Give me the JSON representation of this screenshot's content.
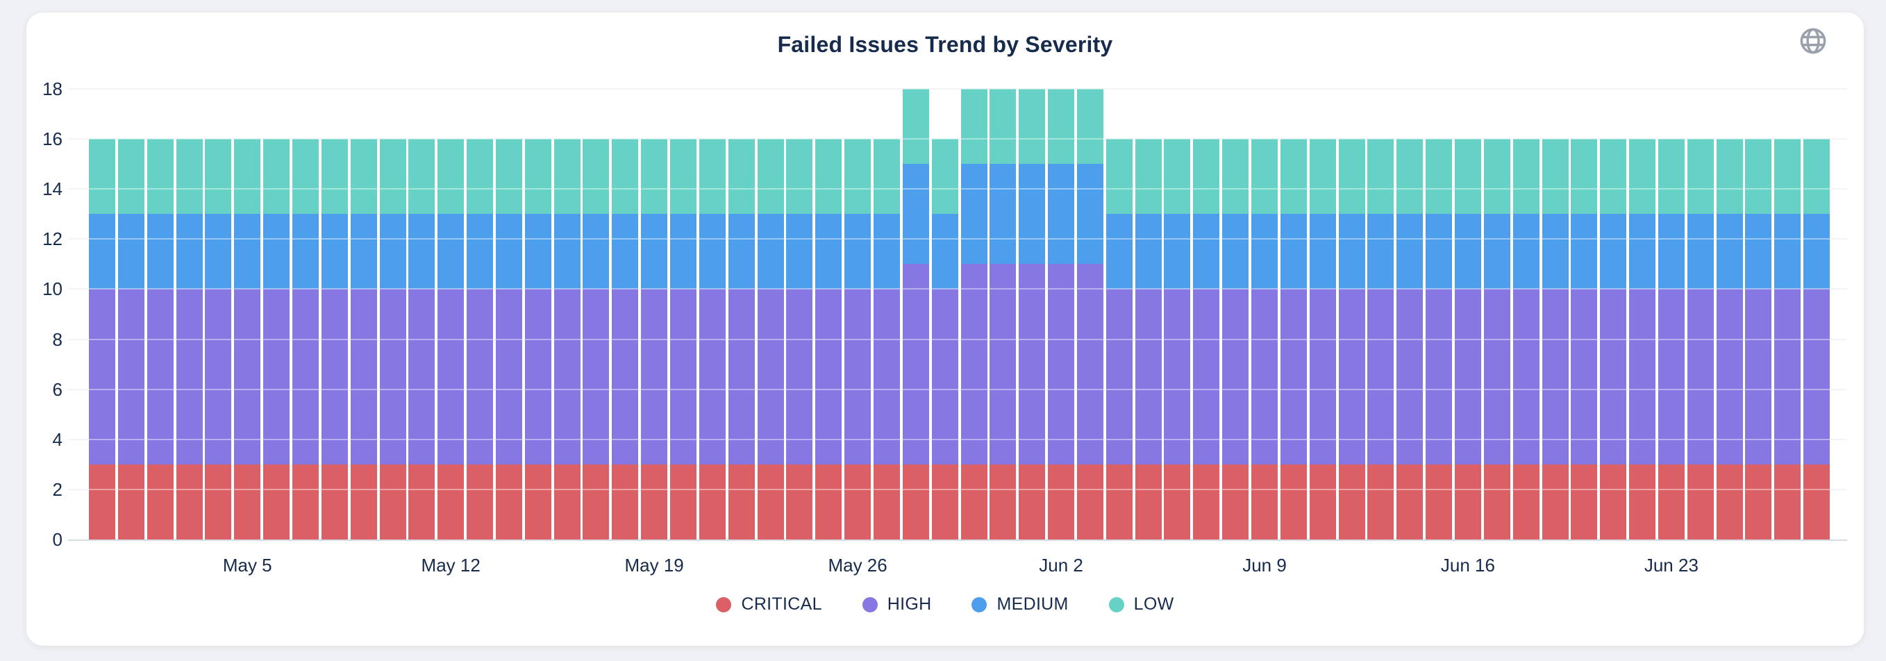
{
  "page_background": "#eff1f4",
  "header": {
    "title": "Failed Issues Trend by Severity",
    "globe_icon_color": "#9AA1AC"
  },
  "chart_data": {
    "type": "bar",
    "stacked": true,
    "title": "Failed Issues Trend by Severity",
    "xlabel": "",
    "ylabel": "",
    "ylim": [
      0,
      18
    ],
    "y_ticks": [
      0,
      2,
      4,
      6,
      8,
      10,
      12,
      14,
      16,
      18
    ],
    "grid": true,
    "legend_position": "bottom",
    "text_color": "#172B4D",
    "grid_color": "#ebedf1",
    "axis_line_color": "#d6dce6",
    "x_tick_labels": [
      "May 5",
      "May 12",
      "May 19",
      "May 26",
      "Jun 2",
      "Jun 9",
      "Jun 16",
      "Jun 23"
    ],
    "x_tick_indices": [
      5,
      12,
      19,
      26,
      33,
      40,
      47,
      54
    ],
    "categories": [
      "Apr 30",
      "May 1",
      "May 2",
      "May 3",
      "May 4",
      "May 5",
      "May 6",
      "May 7",
      "May 8",
      "May 9",
      "May 10",
      "May 11",
      "May 12",
      "May 13",
      "May 14",
      "May 15",
      "May 16",
      "May 17",
      "May 18",
      "May 19",
      "May 20",
      "May 21",
      "May 22",
      "May 23",
      "May 24",
      "May 25",
      "May 26",
      "May 27",
      "May 28",
      "May 29",
      "May 30",
      "May 31",
      "Jun 1",
      "Jun 2",
      "Jun 3",
      "Jun 4",
      "Jun 5",
      "Jun 6",
      "Jun 7",
      "Jun 8",
      "Jun 9",
      "Jun 10",
      "Jun 11",
      "Jun 12",
      "Jun 13",
      "Jun 14",
      "Jun 15",
      "Jun 16",
      "Jun 17",
      "Jun 18",
      "Jun 19",
      "Jun 20",
      "Jun 21",
      "Jun 22",
      "Jun 23",
      "Jun 24",
      "Jun 25",
      "Jun 26",
      "Jun 27",
      "Jun 28"
    ],
    "series": [
      {
        "name": "CRITICAL",
        "color": "#DB6065",
        "values": [
          3,
          3,
          3,
          3,
          3,
          3,
          3,
          3,
          3,
          3,
          3,
          3,
          3,
          3,
          3,
          3,
          3,
          3,
          3,
          3,
          3,
          3,
          3,
          3,
          3,
          3,
          3,
          3,
          3,
          3,
          3,
          3,
          3,
          3,
          3,
          3,
          3,
          3,
          3,
          3,
          3,
          3,
          3,
          3,
          3,
          3,
          3,
          3,
          3,
          3,
          3,
          3,
          3,
          3,
          3,
          3,
          3,
          3,
          3,
          3
        ]
      },
      {
        "name": "HIGH",
        "color": "#8677E2",
        "values": [
          7,
          7,
          7,
          7,
          7,
          7,
          7,
          7,
          7,
          7,
          7,
          7,
          7,
          7,
          7,
          7,
          7,
          7,
          7,
          7,
          7,
          7,
          7,
          7,
          7,
          7,
          7,
          7,
          8,
          7,
          8,
          8,
          8,
          8,
          8,
          7,
          7,
          7,
          7,
          7,
          7,
          7,
          7,
          7,
          7,
          7,
          7,
          7,
          7,
          7,
          7,
          7,
          7,
          7,
          7,
          7,
          7,
          7,
          7,
          7
        ]
      },
      {
        "name": "MEDIUM",
        "color": "#4D9FEE",
        "values": [
          3,
          3,
          3,
          3,
          3,
          3,
          3,
          3,
          3,
          3,
          3,
          3,
          3,
          3,
          3,
          3,
          3,
          3,
          3,
          3,
          3,
          3,
          3,
          3,
          3,
          3,
          3,
          3,
          4,
          3,
          4,
          4,
          4,
          4,
          4,
          3,
          3,
          3,
          3,
          3,
          3,
          3,
          3,
          3,
          3,
          3,
          3,
          3,
          3,
          3,
          3,
          3,
          3,
          3,
          3,
          3,
          3,
          3,
          3,
          3
        ]
      },
      {
        "name": "LOW",
        "color": "#66D1C5",
        "values": [
          3,
          3,
          3,
          3,
          3,
          3,
          3,
          3,
          3,
          3,
          3,
          3,
          3,
          3,
          3,
          3,
          3,
          3,
          3,
          3,
          3,
          3,
          3,
          3,
          3,
          3,
          3,
          3,
          3,
          3,
          3,
          3,
          3,
          3,
          3,
          3,
          3,
          3,
          3,
          3,
          3,
          3,
          3,
          3,
          3,
          3,
          3,
          3,
          3,
          3,
          3,
          3,
          3,
          3,
          3,
          3,
          3,
          3,
          3,
          3
        ]
      }
    ]
  }
}
